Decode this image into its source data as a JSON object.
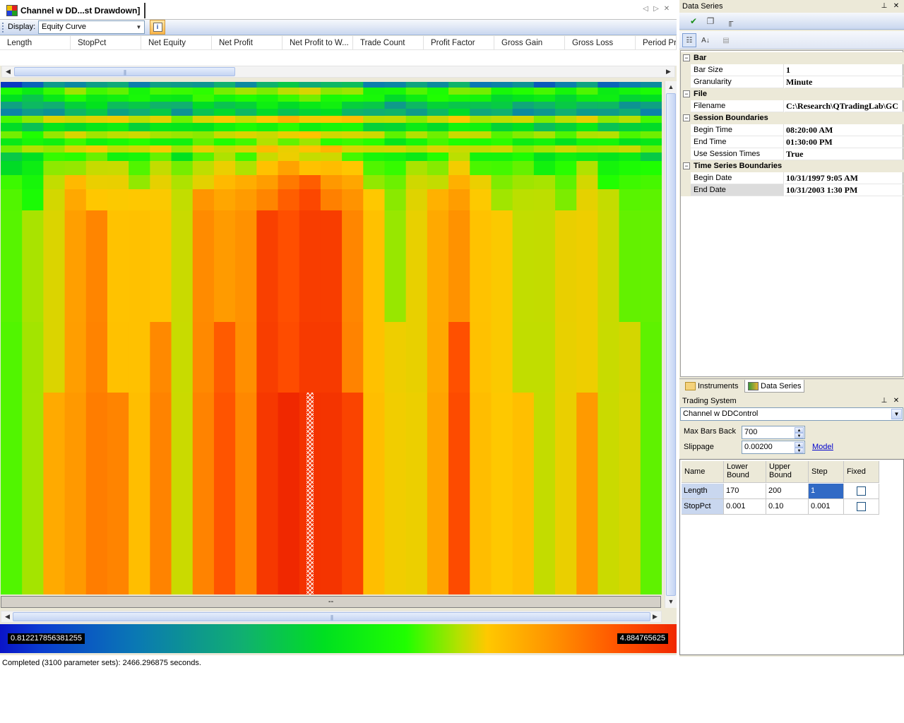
{
  "document": {
    "tab_title": "Channel w DD...st Drawdown]",
    "display_label": "Display:",
    "display_value": "Equity Curve",
    "columns": [
      "Length",
      "StopPct",
      "Net Equity",
      "Net Profit",
      "Net Profit to W...",
      "Trade Count",
      "Profit Factor",
      "Gross Gain",
      "Gross Loss",
      "Period Pr"
    ],
    "dash_text": "--",
    "legend_min": "0.812217856381255",
    "legend_max": "4.884765625",
    "status_text": "Completed (3100 parameter sets): 2466.296875 seconds."
  },
  "data_series_panel": {
    "title": "Data Series",
    "categories": [
      {
        "name": "Bar",
        "rows": [
          {
            "name": "Bar Size",
            "value": "1"
          },
          {
            "name": "Granularity",
            "value": "Minute"
          }
        ]
      },
      {
        "name": "File",
        "rows": [
          {
            "name": "Filename",
            "value": "C:\\Research\\QTradingLab\\GC"
          }
        ]
      },
      {
        "name": "Session Boundaries",
        "rows": [
          {
            "name": "Begin Time",
            "value": "08:20:00 AM"
          },
          {
            "name": "End Time",
            "value": "01:30:00 PM"
          },
          {
            "name": "Use Session Times",
            "value": "True"
          }
        ]
      },
      {
        "name": "Time Series Boundaries",
        "rows": [
          {
            "name": "Begin Date",
            "value": "10/31/1997 9:05 AM"
          },
          {
            "name": "End Date",
            "value": "10/31/2003 1:30 PM"
          }
        ]
      }
    ],
    "tabs": [
      "Instruments",
      "Data Series"
    ],
    "active_tab": "Data Series"
  },
  "trading_system_panel": {
    "title": "Trading System",
    "system": "Channel w DDControl",
    "max_bars_back_label": "Max Bars Back",
    "max_bars_back": "700",
    "slippage_label": "Slippage",
    "slippage": "0.00200",
    "model_link": "Model",
    "table_headers": {
      "name": "Name",
      "lower": "Lower\nBound",
      "upper": "Upper\nBound",
      "step": "Step",
      "fixed": "Fixed"
    },
    "params": [
      {
        "name": "Length",
        "lower": "170",
        "upper": "200",
        "step": "1",
        "fixed": false
      },
      {
        "name": "StopPct",
        "lower": "0.001",
        "upper": "0.10",
        "step": "0.001",
        "fixed": false
      }
    ]
  },
  "colors": {
    "scale": [
      "#0a14c8",
      "#0a78b4",
      "#10b070",
      "#00e020",
      "#20ff00",
      "#b8e000",
      "#ffc800",
      "#ff9000",
      "#ff5000",
      "#f02800"
    ],
    "selection": "#316ac5",
    "link": "#0000cc"
  },
  "heatmap": {
    "column_levels": [
      0.5,
      0.52,
      0.66,
      0.76,
      0.77,
      0.72,
      0.68,
      0.75,
      0.61,
      0.78,
      0.82,
      0.8,
      0.92,
      0.95,
      0.96,
      0.92,
      0.84,
      0.68,
      0.6,
      0.66,
      0.72,
      0.84,
      0.7,
      0.64,
      0.62,
      0.58,
      0.6,
      0.68,
      0.58,
      0.56,
      0.52
    ]
  }
}
